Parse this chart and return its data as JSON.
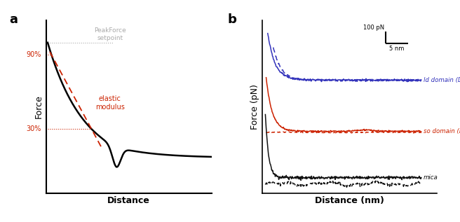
{
  "panel_a": {
    "label": "a",
    "xlabel": "Distance",
    "ylabel": "Force",
    "peakforce_text": "PeakForce\nsetpoint",
    "elastic_text": "elastic\nmodulus",
    "pct_90": "90%",
    "pct_30": "30%",
    "curve_color": "#000000",
    "fit_color": "#cc2200",
    "annotation_color": "#aaaaaa",
    "pct_color": "#cc2200"
  },
  "panel_b": {
    "label": "b",
    "xlabel": "Distance (nm)",
    "ylabel": "Force (pN)",
    "scalebar_force": "100 pN",
    "scalebar_dist": "5 nm",
    "ld_label": "ld domain (DOPC)",
    "so_label": "so domain (DPPC)",
    "mica_label": "mica",
    "ld_color": "#3333bb",
    "so_color": "#cc2200",
    "mica_color": "#111111"
  },
  "background_color": "#ffffff"
}
